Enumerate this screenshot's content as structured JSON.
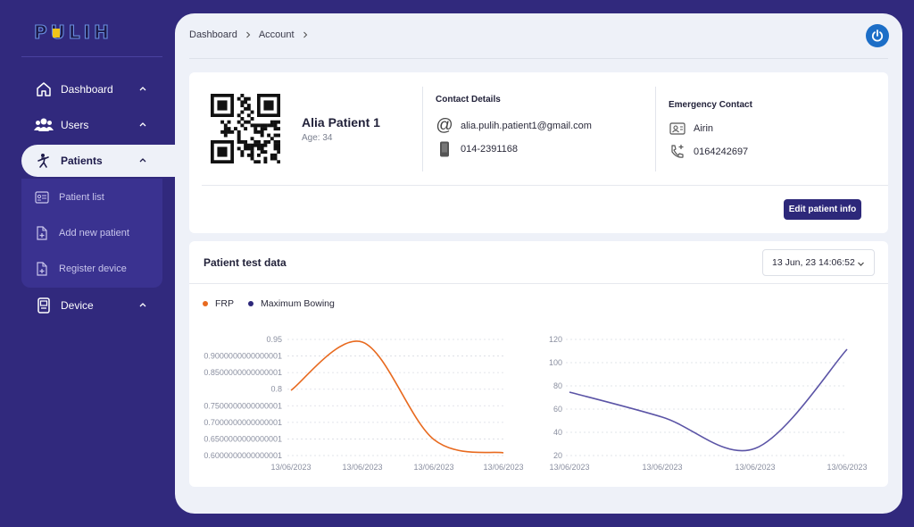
{
  "app": {
    "logo_text": "PULIH"
  },
  "sidebar": {
    "items": [
      {
        "label": "Dashboard",
        "icon": "home-icon"
      },
      {
        "label": "Users",
        "icon": "users-icon"
      },
      {
        "label": "Patients",
        "icon": "patient-icon",
        "active": true
      },
      {
        "label": "Device",
        "icon": "device-icon"
      }
    ],
    "submenu": [
      {
        "label": "Patient list",
        "icon": "list-icon"
      },
      {
        "label": "Add new patient",
        "icon": "add-file-icon"
      },
      {
        "label": "Register device",
        "icon": "add-file-icon"
      }
    ]
  },
  "header": {
    "breadcrumb": [
      "Dashboard",
      "Account"
    ]
  },
  "patient": {
    "name": "Alia Patient 1",
    "age": "Age: 34",
    "contact_title": "Contact Details",
    "email": "alia.pulih.patient1@gmail.com",
    "phone": "014-2391168",
    "emergency_title": "Emergency Contact",
    "emergency_name": "Airin",
    "emergency_phone": "0164242697",
    "edit_label": "Edit patient info"
  },
  "test_data": {
    "title": "Patient test data",
    "selected_date": "13 Jun, 23 14:06:52"
  },
  "colors": {
    "brand": "#31297d",
    "frp": "#e86a1f",
    "bowing": "#5b54a6",
    "accent_blue": "#1c6ec7"
  },
  "chart_data": [
    {
      "type": "line",
      "series": [
        {
          "name": "FRP",
          "x": [
            "13/06/2023",
            "13/06/2023",
            "13/06/2023",
            "13/06/2023"
          ],
          "values": [
            0.8,
            0.95,
            0.63,
            0.61
          ]
        }
      ],
      "x_ticks": [
        "13/06/2023",
        "13/06/2023",
        "13/06/2023",
        "13/06/2023"
      ],
      "y_ticks": [
        "0.95",
        "0.9000000000000001",
        "0.8500000000000001",
        "0.8",
        "0.7500000000000001",
        "0.7000000000000001",
        "0.6500000000000001",
        "0.6000000000000001"
      ],
      "ylim": [
        0.6,
        0.95
      ]
    },
    {
      "type": "line",
      "series": [
        {
          "name": "Maximum Bowing",
          "x": [
            "13/06/2023",
            "13/06/2023",
            "13/06/2023",
            "13/06/2023"
          ],
          "values": [
            75,
            55,
            27,
            112
          ]
        }
      ],
      "x_ticks": [
        "13/06/2023",
        "13/06/2023",
        "13/06/2023",
        "13/06/2023"
      ],
      "y_ticks": [
        "120",
        "100",
        "80",
        "60",
        "40",
        "20"
      ],
      "ylim": [
        20,
        120
      ]
    }
  ]
}
